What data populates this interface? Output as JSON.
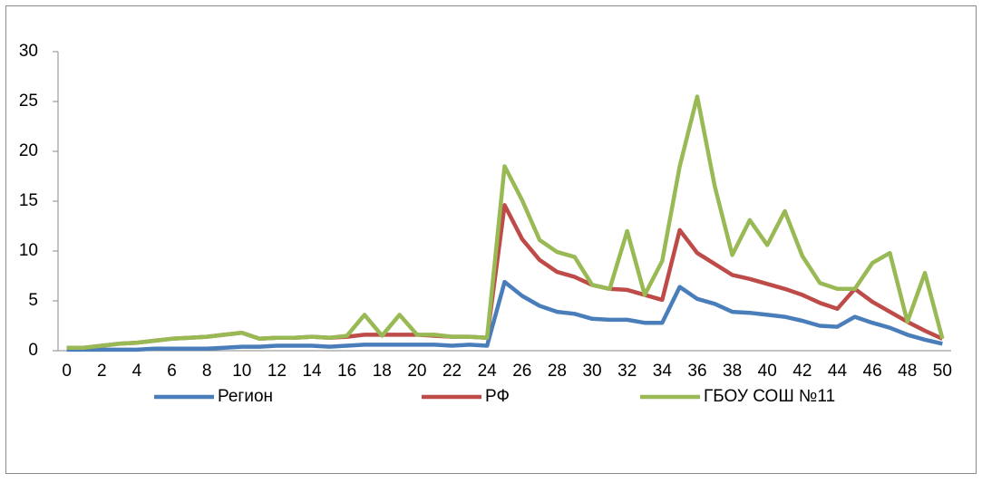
{
  "chart_data": {
    "type": "line",
    "x": [
      0,
      1,
      2,
      3,
      4,
      5,
      6,
      7,
      8,
      9,
      10,
      11,
      12,
      13,
      14,
      15,
      16,
      17,
      18,
      19,
      20,
      21,
      22,
      23,
      24,
      25,
      26,
      27,
      28,
      29,
      30,
      31,
      32,
      33,
      34,
      35,
      36,
      37,
      38,
      39,
      40,
      41,
      42,
      43,
      44,
      45,
      46,
      47,
      48,
      49,
      50
    ],
    "xlim": [
      -0.5,
      50.5
    ],
    "xticks": [
      0,
      2,
      4,
      6,
      8,
      10,
      12,
      14,
      16,
      18,
      20,
      22,
      24,
      26,
      28,
      30,
      32,
      34,
      36,
      38,
      40,
      42,
      44,
      46,
      48,
      50
    ],
    "ylim": [
      0,
      30
    ],
    "yticks": [
      0,
      5,
      10,
      15,
      20,
      25,
      30
    ],
    "grid": false,
    "legend": "bottom",
    "series": [
      {
        "name": "Регион",
        "color": "#4a7ebb",
        "values": [
          0.1,
          0.1,
          0.1,
          0.1,
          0.1,
          0.2,
          0.2,
          0.2,
          0.2,
          0.3,
          0.4,
          0.4,
          0.5,
          0.5,
          0.5,
          0.4,
          0.5,
          0.6,
          0.6,
          0.6,
          0.6,
          0.6,
          0.5,
          0.6,
          0.5,
          6.9,
          5.5,
          4.5,
          3.9,
          3.7,
          3.2,
          3.1,
          3.1,
          2.8,
          2.8,
          6.4,
          5.2,
          4.7,
          3.9,
          3.8,
          3.6,
          3.4,
          3.0,
          2.5,
          2.4,
          3.4,
          2.8,
          2.3,
          1.6,
          1.1,
          0.7
        ]
      },
      {
        "name": "РФ",
        "color": "#be4b48",
        "values": [
          0.3,
          0.3,
          0.5,
          0.7,
          0.8,
          1.0,
          1.2,
          1.3,
          1.4,
          1.6,
          1.8,
          1.2,
          1.3,
          1.3,
          1.4,
          1.3,
          1.4,
          1.6,
          1.6,
          1.6,
          1.6,
          1.5,
          1.4,
          1.4,
          1.3,
          14.6,
          11.2,
          9.1,
          7.9,
          7.4,
          6.6,
          6.2,
          6.1,
          5.6,
          5.1,
          12.1,
          9.8,
          8.7,
          7.6,
          7.2,
          6.7,
          6.2,
          5.6,
          4.8,
          4.2,
          6.2,
          4.9,
          3.9,
          2.9,
          2.0,
          1.2
        ]
      },
      {
        "name": "ГБОУ СОШ №11",
        "color": "#98b954",
        "values": [
          0.3,
          0.3,
          0.5,
          0.7,
          0.8,
          1.0,
          1.2,
          1.3,
          1.4,
          1.6,
          1.8,
          1.2,
          1.3,
          1.3,
          1.4,
          1.3,
          1.5,
          3.6,
          1.5,
          3.6,
          1.6,
          1.6,
          1.4,
          1.4,
          1.3,
          18.5,
          15.1,
          11.1,
          9.9,
          9.4,
          6.6,
          6.2,
          12.0,
          5.6,
          9.0,
          18.5,
          25.5,
          16.5,
          9.6,
          13.1,
          10.6,
          14.0,
          9.5,
          6.8,
          6.2,
          6.2,
          8.8,
          9.8,
          2.9,
          7.8,
          1.2
        ]
      }
    ]
  }
}
